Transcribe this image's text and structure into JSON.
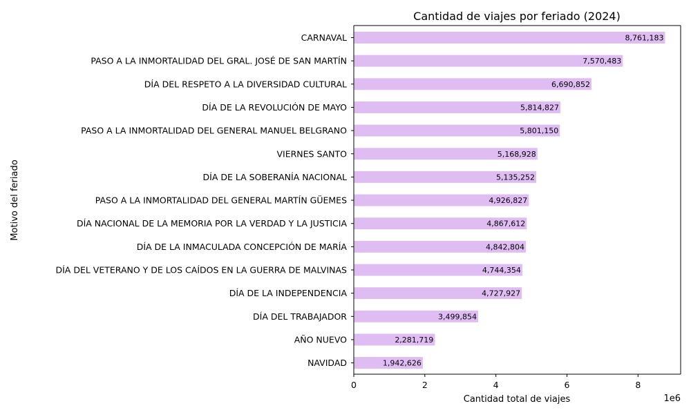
{
  "colors": {
    "bar": "#dfbdf3",
    "axis": "#000000",
    "background": "#ffffff"
  },
  "chart_data": {
    "type": "bar",
    "orientation": "horizontal",
    "title": "Cantidad de viajes por feriado (2024)",
    "xlabel": "Cantidad total de viajes",
    "ylabel": "Motivo del feriado",
    "x_offset_label": "1e6",
    "xlim": [
      0,
      9200000
    ],
    "x_ticks": [
      0,
      2000000,
      4000000,
      6000000,
      8000000
    ],
    "x_tick_labels": [
      "0",
      "2",
      "4",
      "6",
      "8"
    ],
    "grid": false,
    "categories": [
      "CARNAVAL",
      "PASO A LA INMORTALIDAD DEL GRAL. JOSÉ DE SAN MARTÍN",
      "DÍA DEL RESPETO A LA DIVERSIDAD CULTURAL",
      "DÍA DE LA REVOLUCIÓN DE MAYO",
      "PASO A LA INMORTALIDAD DEL GENERAL MANUEL BELGRANO",
      "VIERNES SANTO",
      "DÍA DE LA SOBERANÍA NACIONAL",
      "PASO A LA INMORTALIDAD DEL GENERAL MARTÍN GÜEMES",
      "DÍA NACIONAL DE LA MEMORIA POR LA VERDAD Y LA JUSTICIA",
      "DÍA DE LA INMACULADA CONCEPCIÓN DE MARÍA",
      "DÍA DEL VETERANO Y DE LOS CAÍDOS EN LA GUERRA DE MALVINAS",
      "DÍA DE LA INDEPENDENCIA",
      "DÍA DEL TRABAJADOR",
      "AÑO NUEVO",
      "NAVIDAD"
    ],
    "values": [
      8761183,
      7570483,
      6690852,
      5814827,
      5801150,
      5168928,
      5135252,
      4926827,
      4867612,
      4842804,
      4744354,
      4727927,
      3499854,
      2281719,
      1942626
    ],
    "value_labels": [
      "8,761,183",
      "7,570,483",
      "6,690,852",
      "5,814,827",
      "5,801,150",
      "5,168,928",
      "5,135,252",
      "4,926,827",
      "4,867,612",
      "4,842,804",
      "4,744,354",
      "4,727,927",
      "3,499,854",
      "2,281,719",
      "1,942,626"
    ]
  }
}
